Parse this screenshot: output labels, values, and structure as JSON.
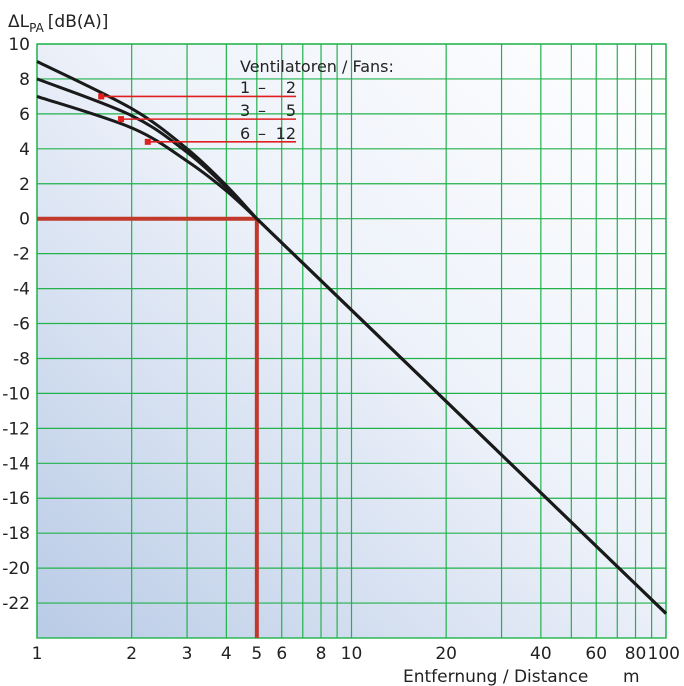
{
  "chart_data": {
    "type": "line",
    "ylabel": "ΔLPA [dB(A)]",
    "ylabel_main": "ΔL",
    "ylabel_sub": "PA",
    "ylabel_unit": "[dB(A)]",
    "xlabel": "Entfernung / Distance",
    "xunit": "m",
    "x_scale": "log",
    "xlim": [
      1,
      100
    ],
    "ylim": [
      -24,
      10
    ],
    "x_tick_labels": [
      {
        "value": 1,
        "label": "1"
      },
      {
        "value": 2,
        "label": "2"
      },
      {
        "value": 3,
        "label": "3"
      },
      {
        "value": 4,
        "label": "4"
      },
      {
        "value": 5,
        "label": "5"
      },
      {
        "value": 6,
        "label": "6"
      },
      {
        "value": 8,
        "label": "8"
      },
      {
        "value": 10,
        "label": "10"
      },
      {
        "value": 20,
        "label": "20"
      },
      {
        "value": 40,
        "label": "40"
      },
      {
        "value": 60,
        "label": "60"
      },
      {
        "value": 80,
        "label": "80"
      },
      {
        "value": 100,
        "label": "100"
      }
    ],
    "x_gridlines": [
      1,
      2,
      3,
      4,
      5,
      6,
      7,
      8,
      9,
      10,
      20,
      30,
      40,
      50,
      60,
      70,
      80,
      90,
      100
    ],
    "y_tick_labels": [
      {
        "value": 10,
        "label": "10"
      },
      {
        "value": 8,
        "label": "8"
      },
      {
        "value": 6,
        "label": "6"
      },
      {
        "value": 4,
        "label": "4"
      },
      {
        "value": 2,
        "label": "2"
      },
      {
        "value": 0,
        "label": "0"
      },
      {
        "value": -2,
        "label": "-2"
      },
      {
        "value": -4,
        "label": "-4"
      },
      {
        "value": -6,
        "label": "-6"
      },
      {
        "value": -8,
        "label": "-8"
      },
      {
        "value": -10,
        "label": "-10"
      },
      {
        "value": -12,
        "label": "-12"
      },
      {
        "value": -14,
        "label": "-14"
      },
      {
        "value": -16,
        "label": "-16"
      },
      {
        "value": -18,
        "label": "-18"
      },
      {
        "value": -20,
        "label": "-20"
      },
      {
        "value": -22,
        "label": "-22"
      }
    ],
    "y_gridlines": [
      10,
      8,
      6,
      4,
      2,
      0,
      -2,
      -4,
      -6,
      -8,
      -10,
      -12,
      -14,
      -16,
      -18,
      -20,
      -22
    ],
    "grid": true,
    "series": [
      {
        "values": [
          [
            1,
            9.0
          ],
          [
            2,
            6.3
          ],
          [
            3,
            4.0
          ],
          [
            4,
            1.9
          ],
          [
            5,
            0.0
          ],
          [
            100,
            -22.6
          ]
        ]
      },
      {
        "values": [
          [
            1,
            8.0
          ],
          [
            2,
            5.9
          ],
          [
            3,
            3.8
          ],
          [
            4,
            1.8
          ],
          [
            5,
            0.0
          ],
          [
            100,
            -22.6
          ]
        ]
      },
      {
        "values": [
          [
            1,
            7.0
          ],
          [
            2,
            5.2
          ],
          [
            3,
            3.3
          ],
          [
            4,
            1.6
          ],
          [
            5,
            0.0
          ],
          [
            100,
            -22.6
          ]
        ]
      }
    ],
    "legend": {
      "title": "Ventilatoren / Fans:",
      "entries": [
        {
          "from": "1",
          "to": "2",
          "x": 1.6,
          "y": 7.0
        },
        {
          "from": "3",
          "to": "5",
          "x": 1.85,
          "y": 5.7
        },
        {
          "from": "6",
          "to": "12",
          "x": 2.25,
          "y": 4.4
        }
      ]
    },
    "reference_marker": {
      "x": 5,
      "y": 0
    },
    "colors": {
      "grid": "#22b24c",
      "curve": "#1a1a1a",
      "reference": "#c0392b",
      "legend_line": "#e02020",
      "bg_light": "#ffffff",
      "bg_dark": "#b9cbe6"
    }
  }
}
